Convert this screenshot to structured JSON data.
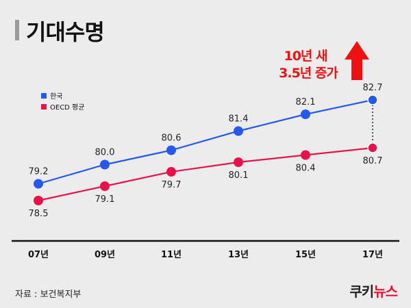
{
  "title": "기대수명",
  "source": "자료 : 보건복지부",
  "brand": {
    "prefix": "쿠키",
    "suffix": "뉴스"
  },
  "annotation": {
    "line1": "10년 새",
    "line2": "3.5년 증가"
  },
  "colors": {
    "korea": "#2458ee",
    "oecd": "#e8124a",
    "annotation": "#ee1111",
    "axis": "#111111"
  },
  "chart_data": {
    "type": "line",
    "categories": [
      "07년",
      "09년",
      "11년",
      "13년",
      "15년",
      "17년"
    ],
    "series": [
      {
        "name": "한국",
        "values": [
          79.2,
          80.0,
          80.6,
          81.4,
          82.1,
          82.7
        ]
      },
      {
        "name": "OECD 평균",
        "values": [
          78.5,
          79.1,
          79.7,
          80.1,
          80.4,
          80.7
        ]
      }
    ],
    "legend": "top-left",
    "grid": false
  }
}
